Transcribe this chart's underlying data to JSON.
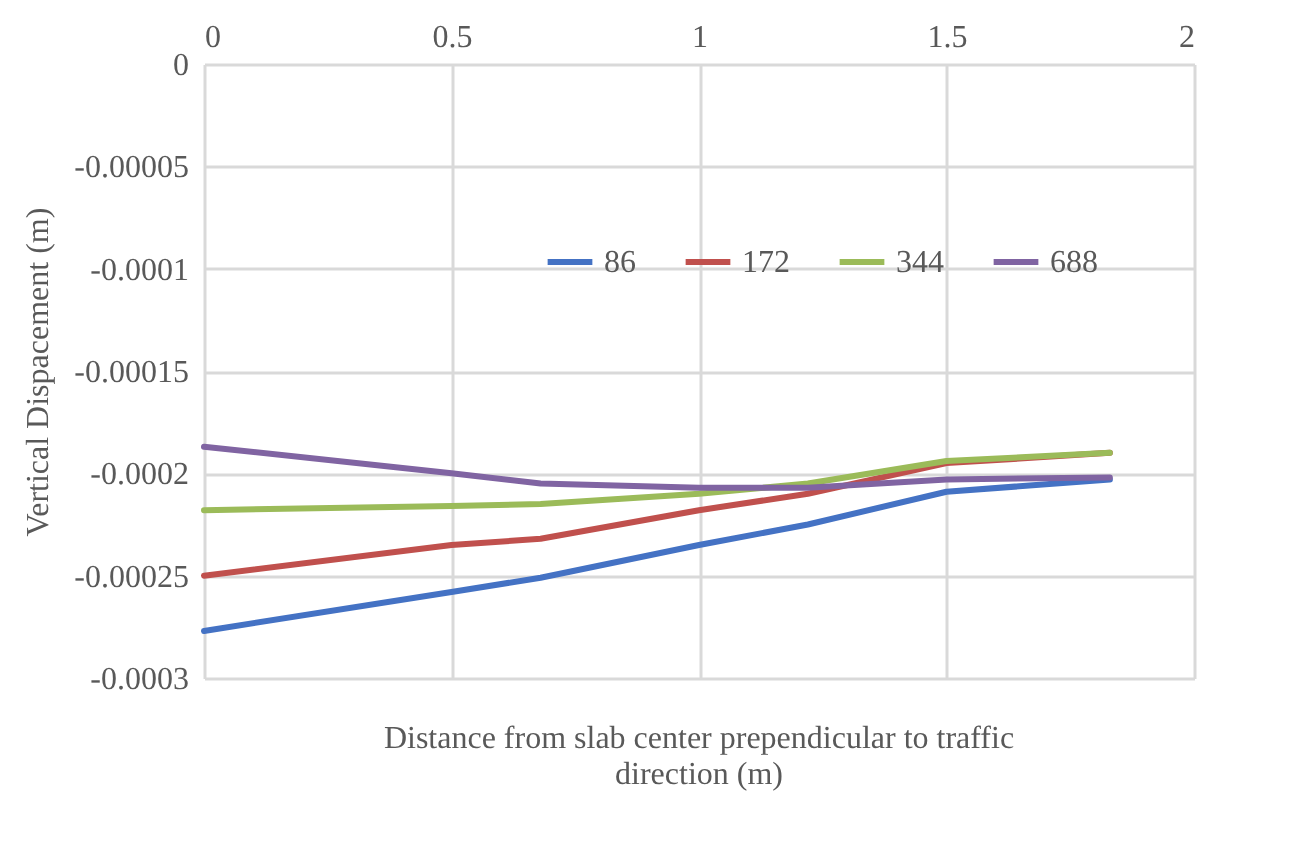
{
  "chart_data": {
    "type": "line",
    "xlabel": "Distance from slab center prependicular to traffic direction (m)",
    "ylabel": "Vertical Dispacement (m)",
    "xlim": [
      0,
      2
    ],
    "xticks": [
      0,
      0.5,
      1,
      1.5,
      2
    ],
    "ylim": [
      -0.0003,
      0
    ],
    "yticks": [
      -0.0003,
      -0.00025,
      -0.0002,
      -0.00015,
      -0.0001,
      {
        "value": -5e-05,
        "label": "-0.00005"
      },
      0
    ],
    "x": [
      0,
      0.5,
      0.68,
      1,
      1.22,
      1.5,
      1.83
    ],
    "series": [
      {
        "name": "86",
        "color": "#4472c4",
        "values": [
          -0.000277,
          -0.000258,
          -0.000251,
          -0.000235,
          -0.000225,
          -0.000209,
          -0.000203
        ]
      },
      {
        "name": "172",
        "color": "#c0504d",
        "values": [
          -0.00025,
          -0.000235,
          -0.000232,
          -0.000218,
          -0.00021,
          -0.000195,
          -0.00019
        ]
      },
      {
        "name": "344",
        "color": "#9bbb59",
        "values": [
          -0.000218,
          -0.000216,
          -0.000215,
          -0.00021,
          -0.000205,
          -0.000194,
          -0.00019
        ]
      },
      {
        "name": "688",
        "color": "#8064a2",
        "values": [
          -0.000187,
          -0.0002,
          -0.000205,
          -0.000207,
          -0.000207,
          -0.000203,
          -0.000202
        ]
      }
    ],
    "grid": true,
    "legend": "top",
    "marker": "none",
    "line_style": "solid"
  }
}
